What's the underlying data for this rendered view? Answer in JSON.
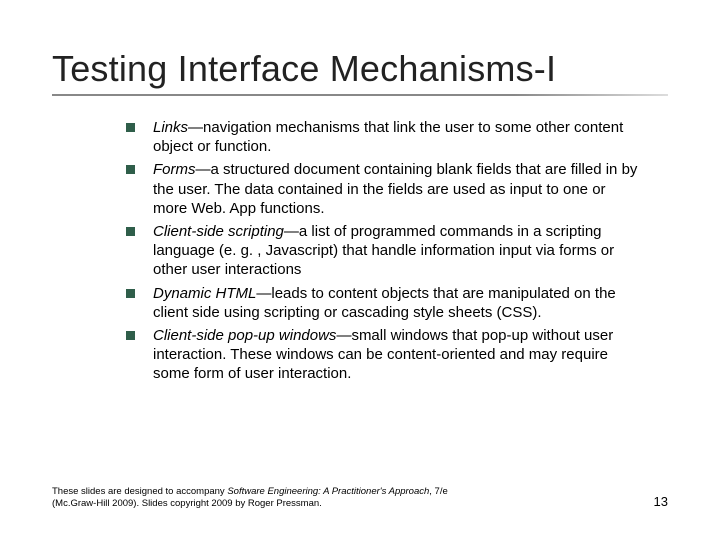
{
  "title": "Testing Interface Mechanisms-I",
  "bullet_color": "#2f5e4a",
  "items": [
    {
      "term": "Links",
      "desc": "—navigation mechanisms that link the user to some other content object or function."
    },
    {
      "term": "Forms",
      "desc": "—a structured document containing blank fields that are filled in by the user. The data contained in the fields are used as input to one or more Web. App functions."
    },
    {
      "term": "Client-side scripting",
      "desc": "—a list of programmed commands in a scripting language (e. g. , Javascript) that handle information input via forms or other user interactions"
    },
    {
      "term": "Dynamic HTML",
      "desc": "—leads to content objects that are manipulated on the client side using scripting or cascading style sheets (CSS)."
    },
    {
      "term": "Client-side pop-up windows",
      "desc": "—small windows that pop-up without user interaction. These windows can be content-oriented and may require some form of user interaction."
    }
  ],
  "footer": {
    "line1_pre": "These slides are designed to accompany ",
    "line1_book": "Software Engineering: A Practitioner's Approach",
    "line1_post": ", 7/e",
    "line2": "(Mc.Graw-Hill 2009). Slides copyright 2009 by Roger Pressman."
  },
  "page_number": "13"
}
